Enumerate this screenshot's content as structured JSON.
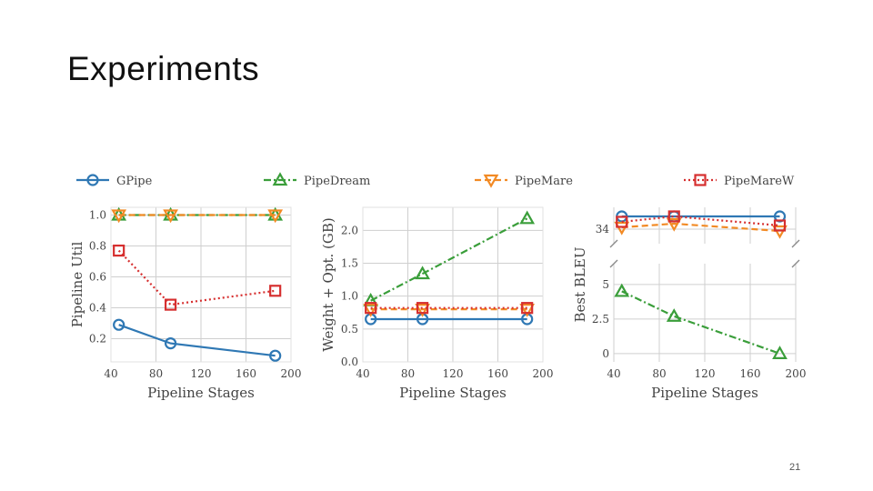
{
  "slide": {
    "title": "Experiments",
    "page_number": "21"
  },
  "legend": [
    {
      "name": "GPipe",
      "color": "#2f78b4",
      "marker": "circle",
      "dash": "solid"
    },
    {
      "name": "PipeDream",
      "color": "#3a9e3a",
      "marker": "triangle-up",
      "dash": "dashdot"
    },
    {
      "name": "PipeMare",
      "color": "#f28a24",
      "marker": "triangle-down",
      "dash": "dashed"
    },
    {
      "name": "PipeMareW",
      "color": "#d62f2f",
      "marker": "square",
      "dash": "dotted"
    }
  ],
  "chart_data": [
    {
      "type": "line",
      "xlabel": "Pipeline Stages",
      "ylabel": "Pipeline Util",
      "xlim": [
        40,
        200
      ],
      "ylim": [
        0.05,
        1.05
      ],
      "xticks": [
        40,
        80,
        120,
        160,
        200
      ],
      "yticks": [
        0.2,
        0.4,
        0.6,
        0.8,
        1.0
      ],
      "ytick_labels": [
        "0.2",
        "0.4",
        "0.6",
        "0.8",
        "1.0"
      ],
      "grid": true,
      "x": [
        47,
        93,
        186
      ],
      "series": [
        {
          "name": "GPipe",
          "values": [
            0.29,
            0.17,
            0.09
          ]
        },
        {
          "name": "PipeDream",
          "values": [
            1.0,
            1.0,
            1.0
          ]
        },
        {
          "name": "PipeMare",
          "values": [
            1.0,
            1.0,
            1.0
          ]
        },
        {
          "name": "PipeMareW",
          "values": [
            0.77,
            0.42,
            0.51
          ]
        }
      ]
    },
    {
      "type": "line",
      "xlabel": "Pipeline Stages",
      "ylabel": "Weight + Opt. (GB)",
      "xlim": [
        40,
        200
      ],
      "ylim": [
        0.0,
        2.35
      ],
      "xticks": [
        40,
        80,
        120,
        160,
        200
      ],
      "yticks": [
        0.0,
        0.5,
        1.0,
        1.5,
        2.0
      ],
      "ytick_labels": [
        "0.0",
        "0.5",
        "1.0",
        "1.5",
        "2.0"
      ],
      "grid": true,
      "x": [
        47,
        93,
        186
      ],
      "series": [
        {
          "name": "GPipe",
          "values": [
            0.65,
            0.65,
            0.65
          ]
        },
        {
          "name": "PipeDream",
          "values": [
            0.93,
            1.34,
            2.18
          ]
        },
        {
          "name": "PipeMare",
          "values": [
            0.8,
            0.8,
            0.8
          ]
        },
        {
          "name": "PipeMareW",
          "values": [
            0.82,
            0.82,
            0.82
          ]
        }
      ]
    },
    {
      "type": "line",
      "xlabel": "Pipeline Stages",
      "ylabel": "Best BLEU",
      "xlim": [
        40,
        200
      ],
      "broken_axis": true,
      "xticks": [
        40,
        80,
        120,
        160,
        200
      ],
      "grid": true,
      "x": [
        47,
        93,
        186
      ],
      "upper_panel": {
        "ylim": [
          33.6,
          34.6
        ],
        "yticks": [
          34
        ],
        "ytick_labels": [
          "34"
        ]
      },
      "lower_panel": {
        "ylim": [
          -0.6,
          6.5
        ],
        "yticks": [
          0,
          2.5,
          5
        ],
        "ytick_labels": [
          "0",
          "2.5",
          "5"
        ]
      },
      "series": [
        {
          "name": "GPipe",
          "panel": "upper",
          "values": [
            34.35,
            34.35,
            34.35
          ]
        },
        {
          "name": "PipeDream",
          "panel": "lower",
          "values": [
            4.5,
            2.7,
            0.0
          ]
        },
        {
          "name": "PipeMare",
          "panel": "upper",
          "values": [
            34.05,
            34.15,
            33.95
          ]
        },
        {
          "name": "PipeMareW",
          "panel": "upper",
          "values": [
            34.2,
            34.35,
            34.1
          ]
        }
      ]
    }
  ]
}
